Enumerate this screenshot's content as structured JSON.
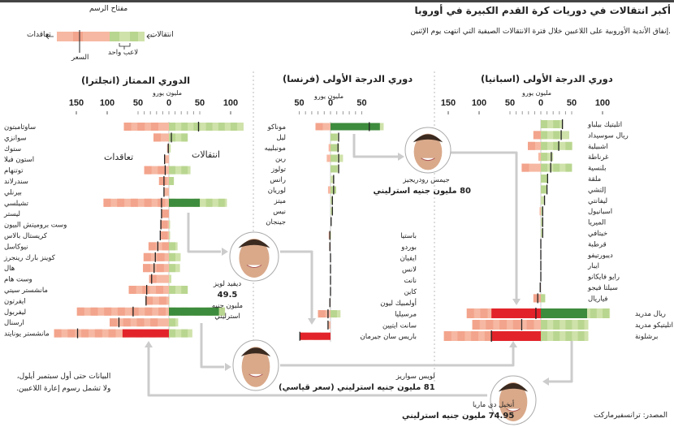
{
  "header": {
    "title": "أكبر انتقالات في دوريات كرة القدم الكبيرة في أوروبا",
    "subtitle": "إنفاق الأندية الأوروبية على اللاعبين خلال فترة الانتقالات الصيفية التي انتهت يوم الإثنين."
  },
  "legend": {
    "title": "مفتاح الرسم",
    "spend": "تعاقدات",
    "income": "انتقالات",
    "price": "السعر",
    "one_player": "لاعب واحد"
  },
  "labels": {
    "spend": "تعاقدات",
    "income": "انتقالات"
  },
  "colors": {
    "spend_light": "#f6b8a2",
    "spend_stripe": "#f3a48c",
    "spend_record": "#e2242a",
    "income_light": "#cfe2aa",
    "income_stripe": "#b9d690",
    "income_record": "#3d8b3d",
    "net_marker": "#222222",
    "arrow": "#cccccc"
  },
  "players": [
    {
      "name": "جيمس رودريجيز",
      "fee": "80 مليون جنيه استرليني"
    },
    {
      "name": "ديفيد لويز",
      "fee": "49.5",
      "fee_unit": "مليون جنيه استرليني"
    },
    {
      "name": "لويس سواريز",
      "fee": "81 مليون جنيه استرليني (سعر قياسي)"
    },
    {
      "name": "أنخيل دي ماريا",
      "fee": "74.95 مليون جنيه استرليني"
    }
  ],
  "footnote": [
    "البيانات حتى أول سبتمبر أيلول،",
    "ولا تشمل رسوم إعارة اللاعبين."
  ],
  "source": "المصدر: ترانسفيرماركت",
  "chart_data": [
    {
      "type": "bar",
      "title": "الدوري الممتاز (انجلترا)",
      "xlabel": "مليون يورو",
      "unit": "مليون يورو",
      "ticks": [
        -150,
        -100,
        -50,
        0,
        50,
        100
      ],
      "tick_labels": [
        "150",
        "100",
        "50",
        "0",
        "50",
        "100"
      ],
      "xlim": [
        -190,
        125
      ],
      "clubs": [
        {
          "name": "ساوثامبتون",
          "spend": 73,
          "income": 121,
          "net": 48
        },
        {
          "name": "سوانزي",
          "spend": 25,
          "income": 29,
          "net": 4
        },
        {
          "name": "ستوك",
          "spend": 3,
          "income": 3,
          "net": -1
        },
        {
          "name": "استون فيلا",
          "spend": 7,
          "income": 0,
          "net": -7
        },
        {
          "name": "توتنهام",
          "spend": 40,
          "income": 35,
          "net": -6
        },
        {
          "name": "سندرلاند",
          "spend": 16,
          "income": 8,
          "net": -8
        },
        {
          "name": "بيرنلي",
          "spend": 8,
          "income": 0,
          "net": -8
        },
        {
          "name": "تشيلسي",
          "spend": 106,
          "income": 94,
          "net": -12,
          "record_income": 50
        },
        {
          "name": "ليستر",
          "spend": 12,
          "income": 0,
          "net": -12
        },
        {
          "name": "وست بروميتش البيون",
          "spend": 14,
          "income": 2,
          "net": -13
        },
        {
          "name": "كريستال بالاس",
          "spend": 14,
          "income": 2,
          "net": -14
        },
        {
          "name": "نيوكاسل",
          "spend": 33,
          "income": 14,
          "net": -18
        },
        {
          "name": "كوينز بارك رينجرز",
          "spend": 41,
          "income": 19,
          "net": -22
        },
        {
          "name": "هال",
          "spend": 42,
          "income": 18,
          "net": -24
        },
        {
          "name": "وست هام",
          "spend": 32,
          "income": 4,
          "net": -28
        },
        {
          "name": "مانشستر سيتي",
          "spend": 65,
          "income": 29,
          "net": -36
        },
        {
          "name": "ايفرتون",
          "spend": 38,
          "income": 1,
          "net": -37
        },
        {
          "name": "ليفربول",
          "spend": 149,
          "income": 91,
          "net": -58,
          "record_income": 81
        },
        {
          "name": "ارسنال",
          "spend": 96,
          "income": 15,
          "net": -81
        },
        {
          "name": "مانشستر يونايتد",
          "spend": 186,
          "income": 38,
          "net": -148,
          "record_spend": 75
        }
      ]
    },
    {
      "type": "bar",
      "title": "دوري الدرجة الأولى (فرنسا)",
      "xlabel": "مليون يورو",
      "unit": "مليون يورو",
      "ticks": [
        -50,
        0,
        50
      ],
      "tick_labels": [
        "50",
        "0",
        "50"
      ],
      "xlim": [
        -60,
        90
      ],
      "clubs": [
        {
          "name": "موناكو",
          "spend": 24,
          "income": 85,
          "net": 62,
          "record_income": 79
        },
        {
          "name": "ليل",
          "spend": 0,
          "income": 13,
          "net": 13
        },
        {
          "name": "مونبلييه",
          "spend": 3,
          "income": 14,
          "net": 12
        },
        {
          "name": "رين",
          "spend": 6,
          "income": 20,
          "net": 13
        },
        {
          "name": "تولوز",
          "spend": 0,
          "income": 13,
          "net": 13
        },
        {
          "name": "رانس",
          "spend": 0,
          "income": 6,
          "net": 5
        },
        {
          "name": "لوريان",
          "spend": 4,
          "income": 9,
          "net": 5
        },
        {
          "name": "ميتز",
          "spend": 0,
          "income": 4,
          "net": 3
        },
        {
          "name": "نيس",
          "spend": 0,
          "income": 4,
          "net": 3
        },
        {
          "name": "جينجان",
          "spend": 0,
          "income": 1,
          "net": 1
        },
        {
          "name": "باستيا",
          "spend": 3,
          "income": 1,
          "net": -1
        },
        {
          "name": "بوردو",
          "spend": 2,
          "income": 0,
          "net": -1
        },
        {
          "name": "ايفيان",
          "spend": 0,
          "income": 0,
          "net": 0
        },
        {
          "name": "لانس",
          "spend": 0,
          "income": 0,
          "net": 0
        },
        {
          "name": "نانت",
          "spend": 0,
          "income": 0,
          "net": 0
        },
        {
          "name": "كاين",
          "spend": 0,
          "income": 0,
          "net": 0
        },
        {
          "name": "أولمبيك ليون",
          "spend": 1,
          "income": 0,
          "net": -1
        },
        {
          "name": "مرسيليا",
          "spend": 20,
          "income": 16,
          "net": -4
        },
        {
          "name": "سانت ايتيين",
          "spend": 4,
          "income": 0,
          "net": -4
        },
        {
          "name": "باريس سان جيرمان",
          "spend": 49,
          "income": 0,
          "net": -49,
          "record_spend": 49
        }
      ]
    },
    {
      "type": "bar",
      "title": "دوري الدرجة الأولى (اسبانيا)",
      "xlabel": "مليون يورو",
      "unit": "مليون يورو",
      "ticks": [
        -150,
        -100,
        -50,
        0,
        50,
        100
      ],
      "tick_labels": [
        "150",
        "100",
        "50",
        "0",
        "50",
        "100"
      ],
      "xlim": [
        -160,
        120
      ],
      "clubs": [
        {
          "name": "اتليتيك بيلباو",
          "spend": 0,
          "income": 36,
          "net": 35
        },
        {
          "name": "ريال سوسيداد",
          "spend": 12,
          "income": 46,
          "net": 33
        },
        {
          "name": "اشبيلية",
          "spend": 21,
          "income": 51,
          "net": 29
        },
        {
          "name": "غرناطة",
          "spend": 4,
          "income": 20,
          "net": 17
        },
        {
          "name": "بلنسية",
          "spend": 31,
          "income": 47,
          "net": 16
        },
        {
          "name": "ملقة",
          "spend": 0,
          "income": 11,
          "net": 11
        },
        {
          "name": "إلتشي",
          "spend": 0,
          "income": 10,
          "net": 10
        },
        {
          "name": "ليفانتي",
          "spend": 0,
          "income": 6,
          "net": 6
        },
        {
          "name": "اسبانيول",
          "spend": 2,
          "income": 4,
          "net": 3
        },
        {
          "name": "الميريا",
          "spend": 0,
          "income": 3,
          "net": 3
        },
        {
          "name": "خيتافي",
          "spend": 0,
          "income": 3,
          "net": 3
        },
        {
          "name": "قرطبة",
          "spend": 0,
          "income": 0,
          "net": 0
        },
        {
          "name": "ديبورتيفو",
          "spend": 0,
          "income": 0,
          "net": 0
        },
        {
          "name": "ايبار",
          "spend": 0,
          "income": 0,
          "net": 0
        },
        {
          "name": "رايو فايكانو",
          "spend": 0,
          "income": 0,
          "net": 0
        },
        {
          "name": "سيلتا فيجو",
          "spend": 1,
          "income": 0,
          "net": -1
        },
        {
          "name": "فياريال",
          "spend": 12,
          "income": 7,
          "net": -5
        },
        {
          "name": "ريال مدريد",
          "spend": 120,
          "income": 112,
          "net": -8,
          "record_spend": 80,
          "record_income": 75
        },
        {
          "name": "اتليتيكو مدريد",
          "spend": 111,
          "income": 77,
          "net": -31
        },
        {
          "name": "برشلونة",
          "spend": 157,
          "income": 77,
          "net": -80,
          "record_spend": 81
        }
      ]
    }
  ]
}
